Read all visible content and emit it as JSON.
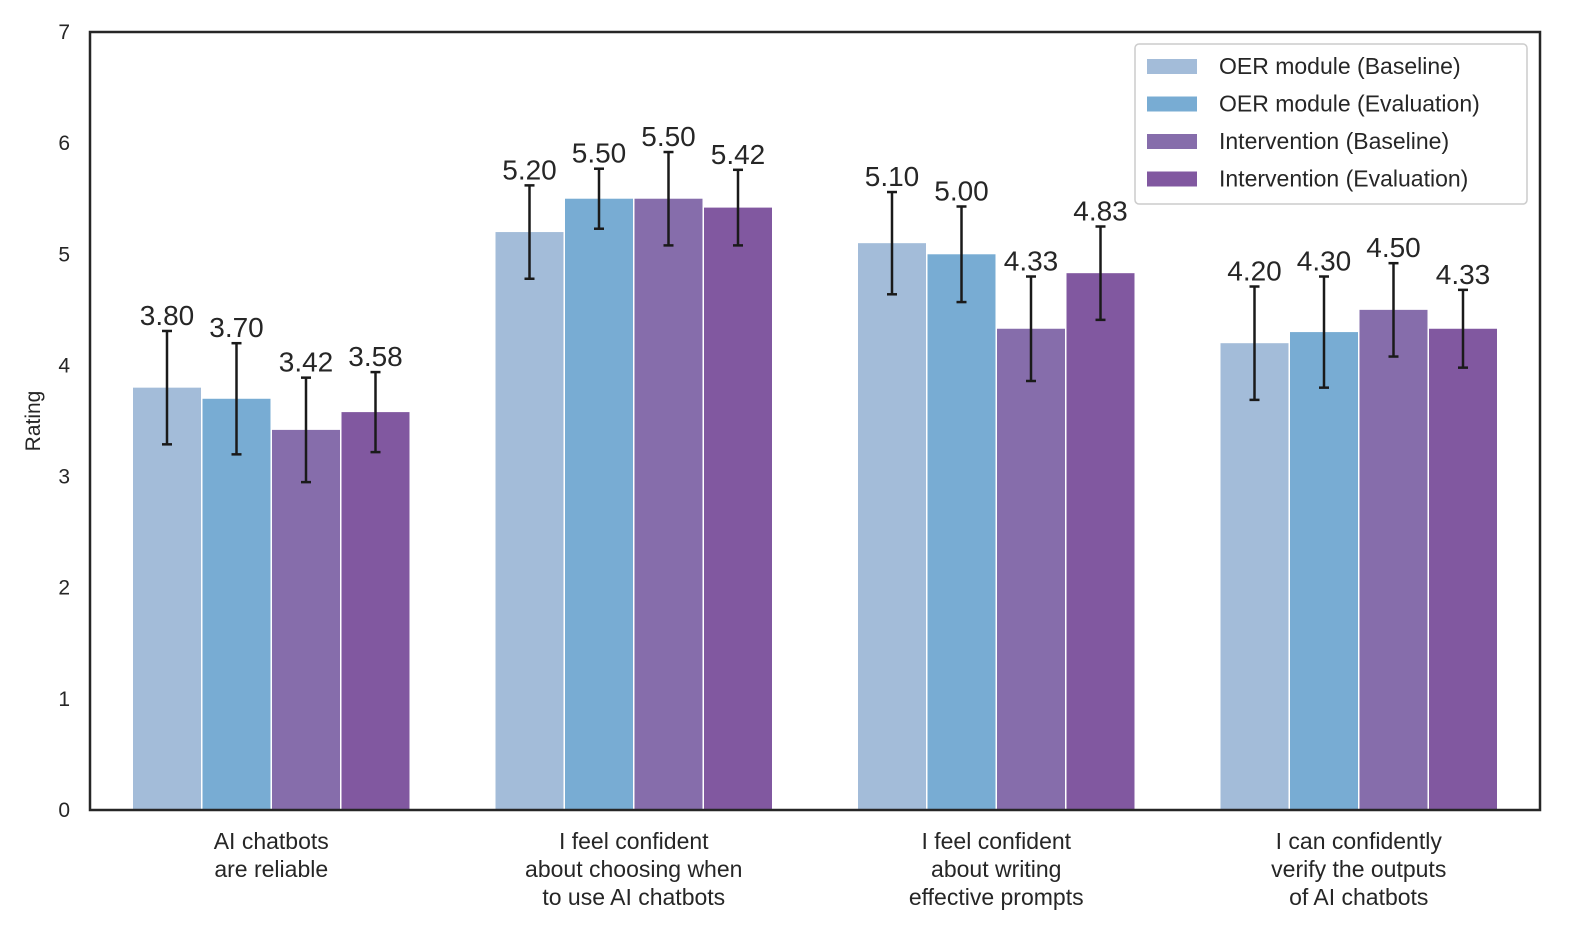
{
  "chart_data": {
    "type": "bar",
    "title": "",
    "xlabel": "",
    "ylabel": "Rating",
    "ylim": [
      0,
      7
    ],
    "yticks": [
      "0",
      "1",
      "2",
      "3",
      "4",
      "5",
      "6",
      "7"
    ],
    "grid": false,
    "legend_position": "top-right",
    "categories": [
      [
        "AI chatbots",
        "are reliable"
      ],
      [
        "I feel confident",
        "about choosing when",
        "to use AI chatbots"
      ],
      [
        "I feel confident",
        "about writing",
        "effective prompts"
      ],
      [
        "I can confidently",
        "verify the outputs",
        "of AI chatbots"
      ]
    ],
    "series": [
      {
        "name": "OER module (Baseline)",
        "color": "#a3bcd9",
        "values": [
          3.8,
          5.2,
          5.1,
          4.2
        ],
        "labels": [
          "3.80",
          "5.20",
          "5.10",
          "4.20"
        ],
        "errors": [
          0.51,
          0.42,
          0.46,
          0.51
        ]
      },
      {
        "name": "OER module (Evaluation)",
        "color": "#78acd3",
        "values": [
          3.7,
          5.5,
          5.0,
          4.3
        ],
        "labels": [
          "3.70",
          "5.50",
          "5.00",
          "4.30"
        ],
        "errors": [
          0.5,
          0.27,
          0.43,
          0.5
        ]
      },
      {
        "name": "Intervention (Baseline)",
        "color": "#866dab",
        "values": [
          3.42,
          5.5,
          4.33,
          4.5
        ],
        "labels": [
          "3.42",
          "5.50",
          "4.33",
          "4.50"
        ],
        "errors": [
          0.47,
          0.42,
          0.47,
          0.42
        ]
      },
      {
        "name": "Intervention (Evaluation)",
        "color": "#8158a0",
        "values": [
          3.58,
          5.42,
          4.83,
          4.33
        ],
        "labels": [
          "3.58",
          "5.42",
          "4.83",
          "4.33"
        ],
        "errors": [
          0.36,
          0.34,
          0.42,
          0.35
        ]
      }
    ]
  }
}
